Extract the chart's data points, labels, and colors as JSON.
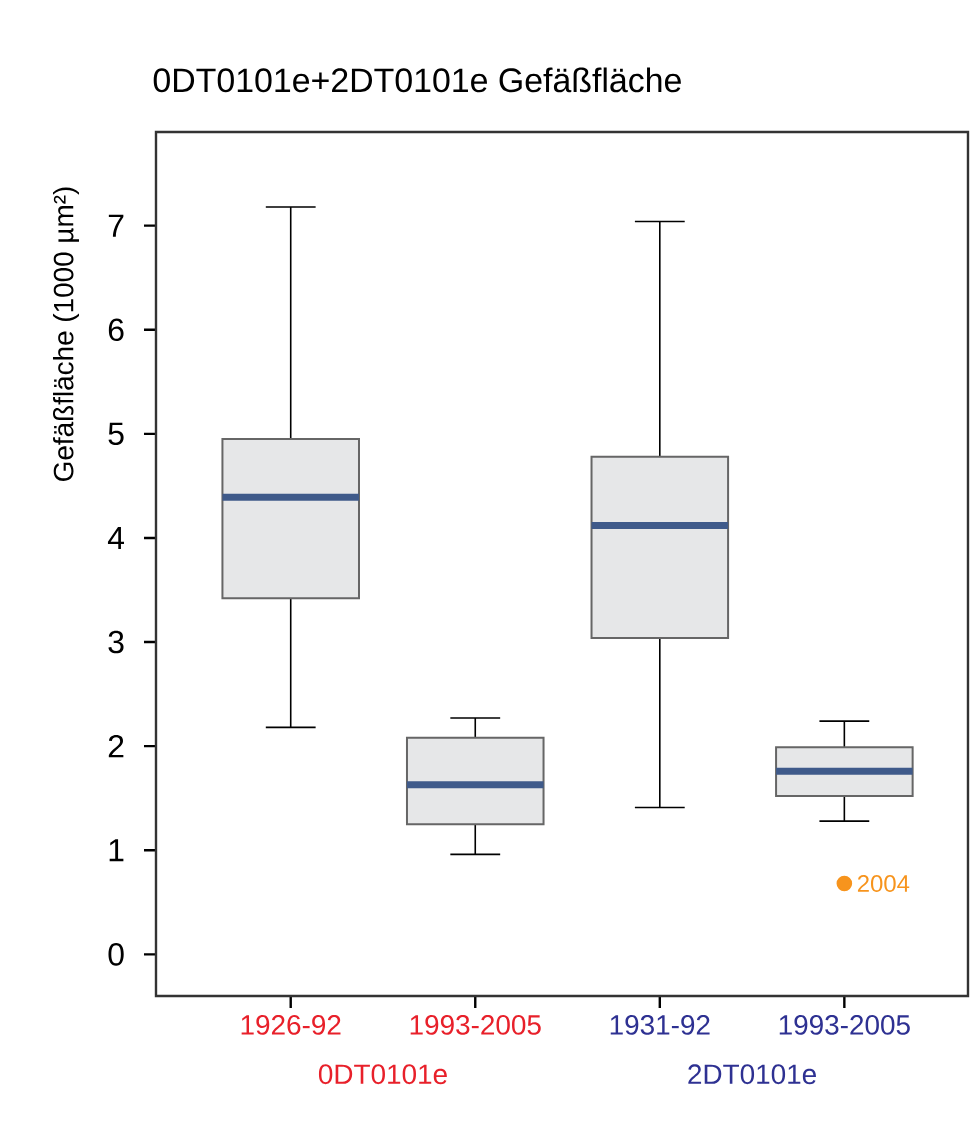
{
  "chart_data": {
    "type": "box",
    "title": "0DT0101e+2DT0101e Gefäßfläche",
    "ylabel": "Gefäßfläche (1000 µm²)",
    "categories": [
      "1926-92",
      "1993-2005",
      "1931-92",
      "1993-2005"
    ],
    "boxes": [
      {
        "low": 2.18,
        "q1": 3.42,
        "median": 4.39,
        "q3": 4.95,
        "high": 7.18
      },
      {
        "low": 0.96,
        "q1": 1.25,
        "median": 1.63,
        "q3": 2.08,
        "high": 2.27
      },
      {
        "low": 1.41,
        "q1": 3.04,
        "median": 4.12,
        "q3": 4.78,
        "high": 7.04
      },
      {
        "low": 1.28,
        "q1": 1.52,
        "median": 1.76,
        "q3": 1.99,
        "high": 2.24,
        "outliers": [
          0.68
        ]
      }
    ],
    "color": "#e6e7e8",
    "ylim": [
      -0.4,
      7.9
    ],
    "yticks": [
      0,
      1,
      2,
      3,
      4,
      5,
      6,
      7
    ],
    "grid": false,
    "annotations": [
      "0DT0101e",
      "2DT0101e",
      "2004"
    ]
  }
}
